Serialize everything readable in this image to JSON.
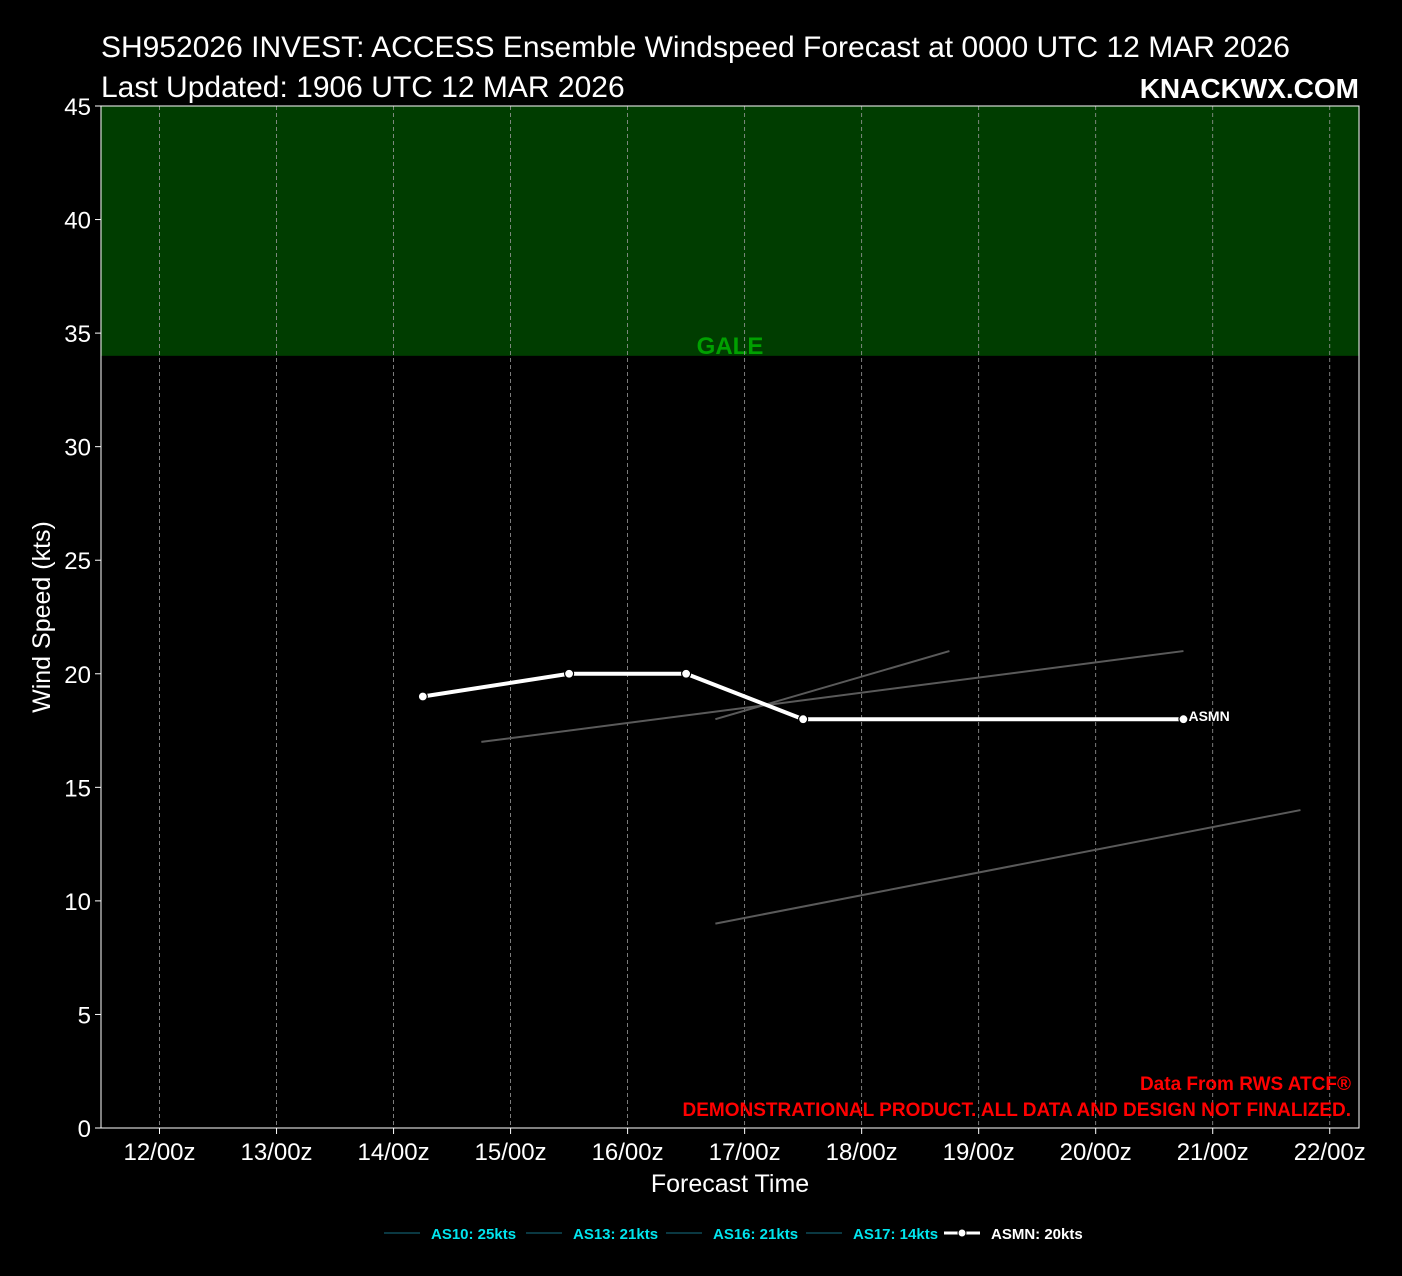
{
  "title": "SH952026 INVEST: ACCESS Ensemble Windspeed Forecast at 0000 UTC 12 MAR 2026",
  "subtitle": "Last Updated: 1906 UTC 12 MAR 2026",
  "brand": "KNACKWX.COM",
  "credit": {
    "source": "Data From RWS ATCF®",
    "disclaimer": "DEMONSTRATIONAL PRODUCT. ALL DATA AND DESIGN NOT FINALIZED.",
    "color": "#ff0000"
  },
  "colors": {
    "background": "#000000",
    "gale_band": "#003d00",
    "gale_text": "#00a000",
    "member_line": "#5a5a5a",
    "mean_line": "#ffffff",
    "legend_member_text": "#00e5ee",
    "legend_member_line": "#0e4a58"
  },
  "chart_data": {
    "type": "line",
    "xlabel": "Forecast Time",
    "ylabel": "Wind Speed (kts)",
    "ylim": [
      0,
      45
    ],
    "xlim": [
      "2026-03-11T12:00Z",
      "2026-03-22T06:00Z"
    ],
    "yticks": [
      0,
      5,
      10,
      15,
      20,
      25,
      30,
      35,
      40,
      45
    ],
    "xticks": [
      {
        "t": "2026-03-12T00:00Z",
        "label": "12/00z"
      },
      {
        "t": "2026-03-13T00:00Z",
        "label": "13/00z"
      },
      {
        "t": "2026-03-14T00:00Z",
        "label": "14/00z"
      },
      {
        "t": "2026-03-15T00:00Z",
        "label": "15/00z"
      },
      {
        "t": "2026-03-16T00:00Z",
        "label": "16/00z"
      },
      {
        "t": "2026-03-17T00:00Z",
        "label": "17/00z"
      },
      {
        "t": "2026-03-18T00:00Z",
        "label": "18/00z"
      },
      {
        "t": "2026-03-19T00:00Z",
        "label": "19/00z"
      },
      {
        "t": "2026-03-20T00:00Z",
        "label": "20/00z"
      },
      {
        "t": "2026-03-21T00:00Z",
        "label": "21/00z"
      },
      {
        "t": "2026-03-22T00:00Z",
        "label": "22/00z"
      }
    ],
    "grid": true,
    "thresholds": [
      {
        "label": "GALE",
        "from": 34,
        "to": 45
      }
    ],
    "series": [
      {
        "name": "AS10",
        "legend": "AS10: 25kts",
        "role": "member",
        "points": [
          {
            "t": "2026-03-14T18:00Z",
            "y": 17
          },
          {
            "t": "2026-03-20T18:00Z",
            "y": 21
          }
        ]
      },
      {
        "name": "AS13",
        "legend": "AS13: 21kts",
        "role": "member",
        "points": [
          {
            "t": "2026-03-16T18:00Z",
            "y": 18
          },
          {
            "t": "2026-03-18T18:00Z",
            "y": 21
          }
        ]
      },
      {
        "name": "AS16",
        "legend": "AS16: 21kts",
        "role": "member",
        "points": [
          {
            "t": "2026-03-16T18:00Z",
            "y": 9
          },
          {
            "t": "2026-03-21T18:00Z",
            "y": 14
          }
        ]
      },
      {
        "name": "AS17",
        "legend": "AS17: 14kts",
        "role": "member",
        "points": []
      },
      {
        "name": "ASMN",
        "legend": "ASMN: 20kts",
        "role": "mean",
        "end_label": "ASMN",
        "points": [
          {
            "t": "2026-03-14T06:00Z",
            "y": 19
          },
          {
            "t": "2026-03-15T12:00Z",
            "y": 20
          },
          {
            "t": "2026-03-16T12:00Z",
            "y": 20
          },
          {
            "t": "2026-03-17T12:00Z",
            "y": 18
          },
          {
            "t": "2026-03-20T18:00Z",
            "y": 18
          }
        ]
      }
    ]
  }
}
